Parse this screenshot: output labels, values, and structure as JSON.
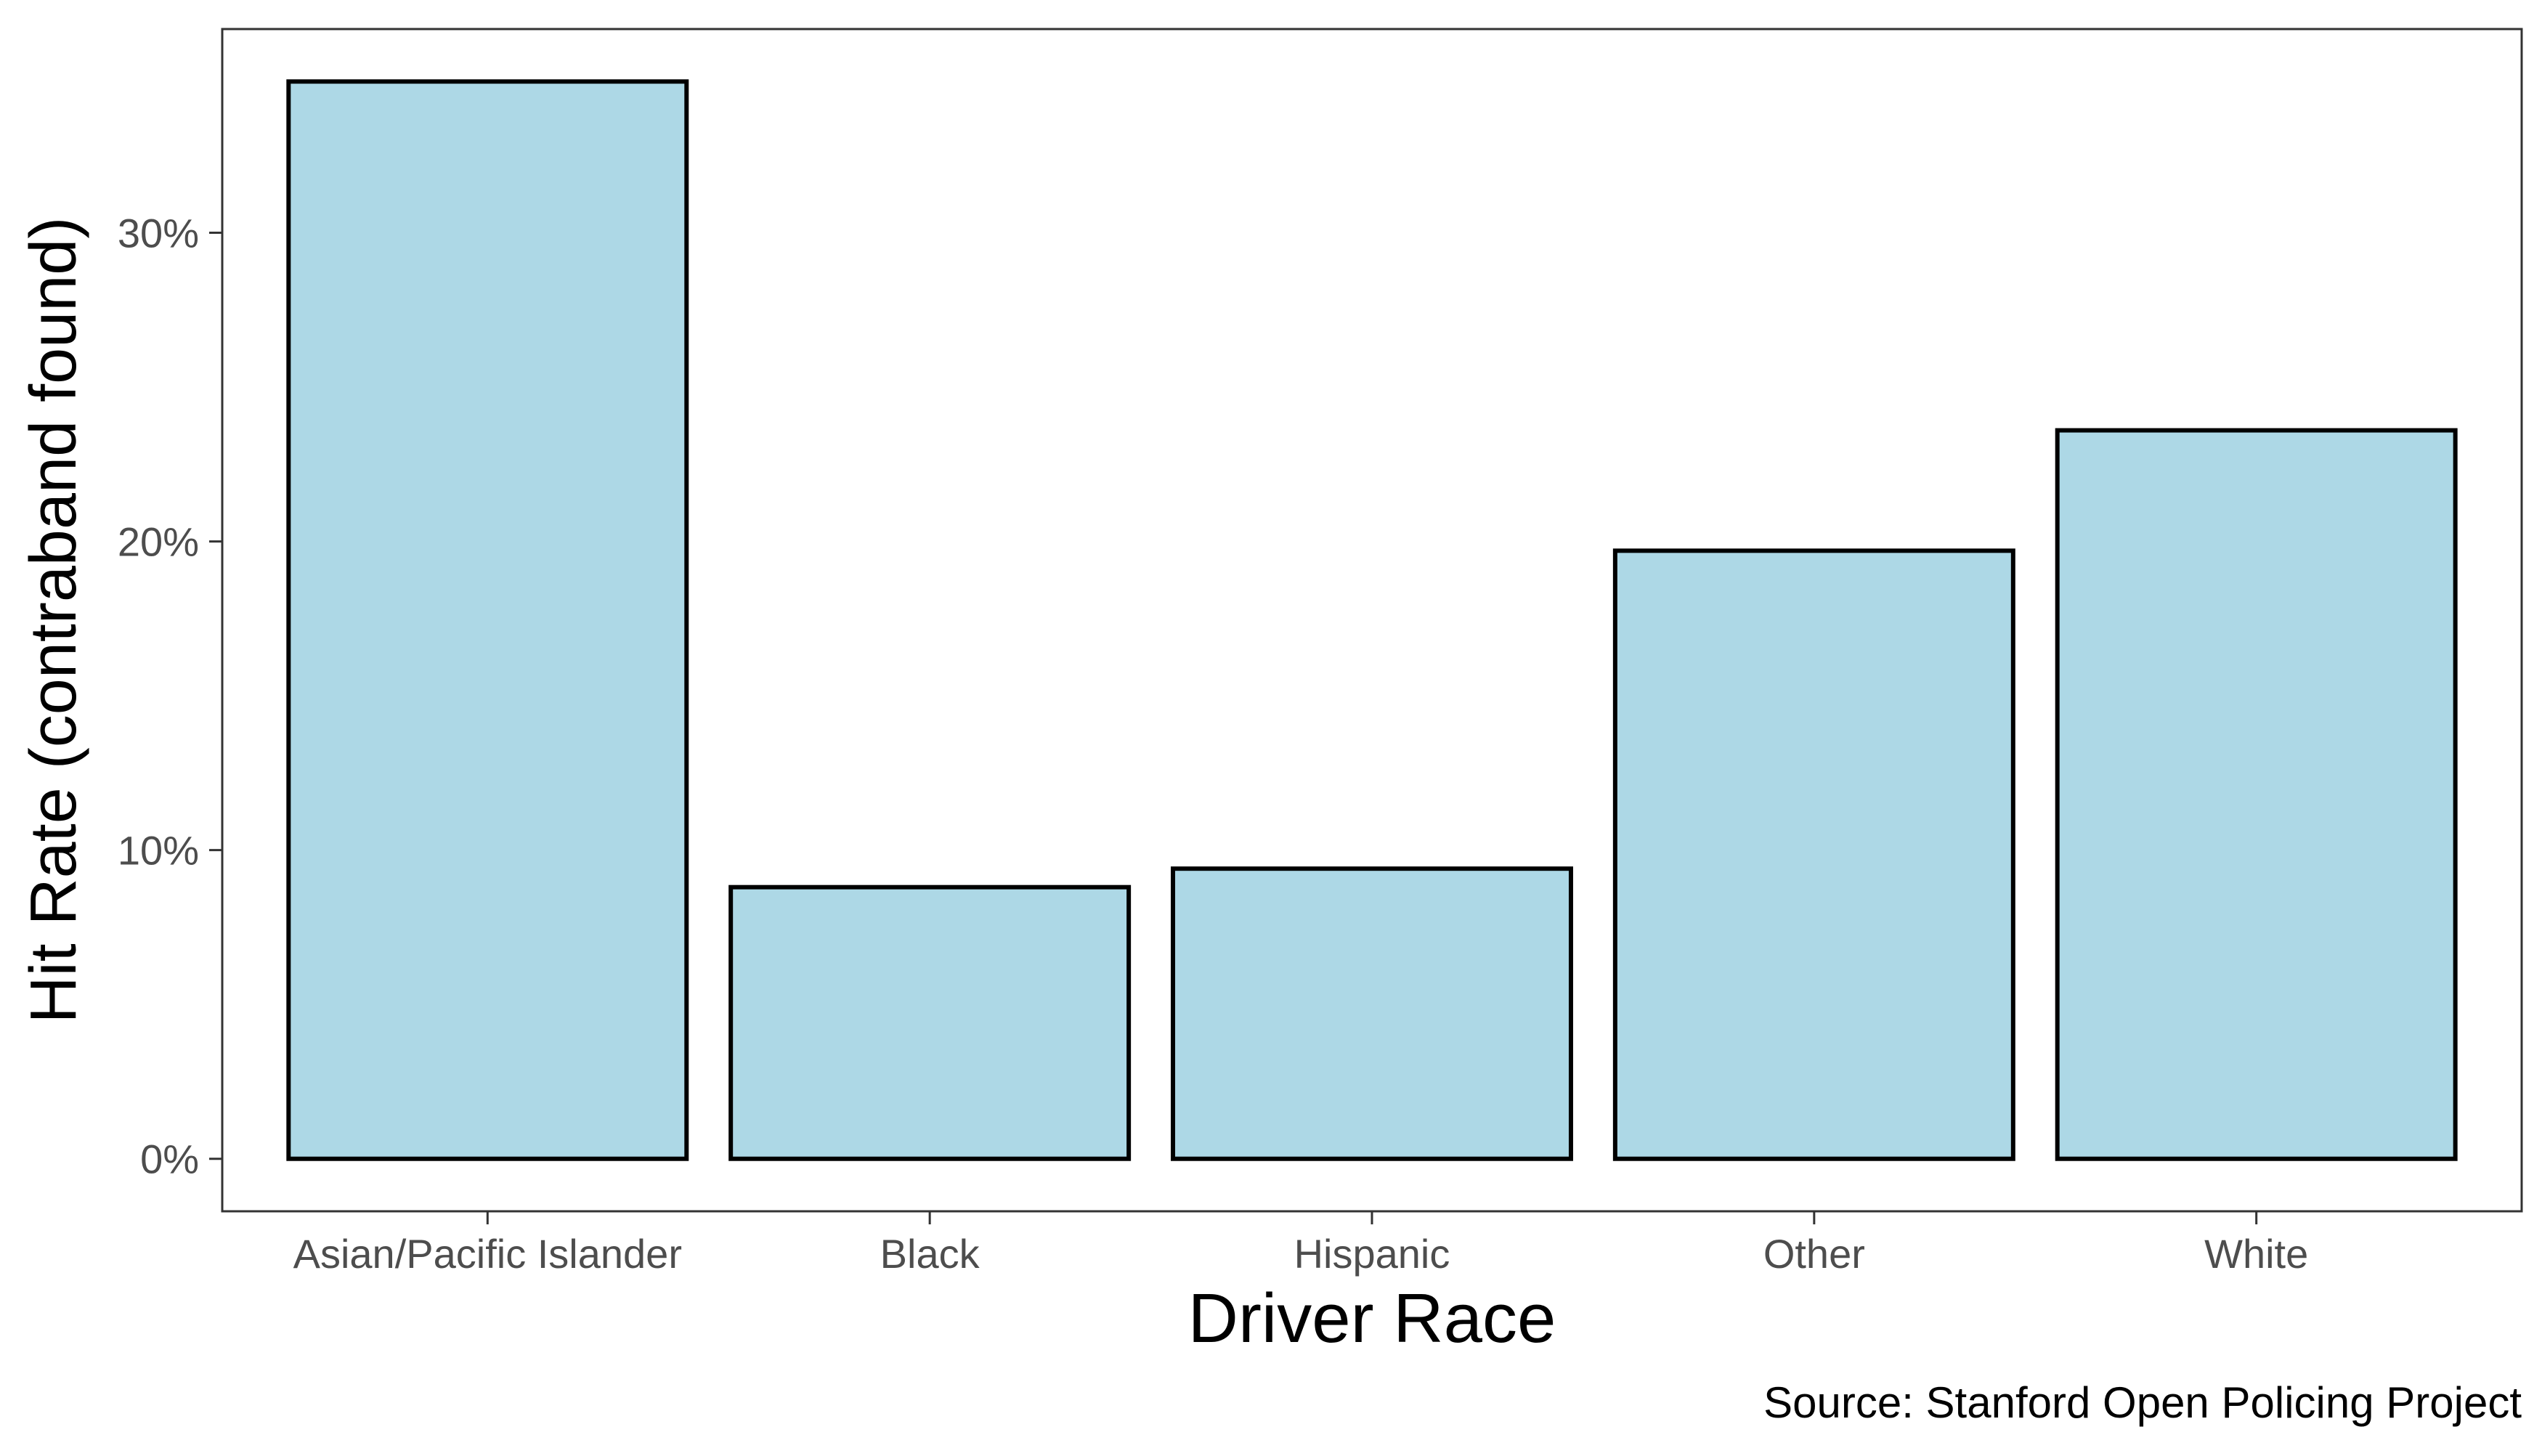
{
  "chart_data": {
    "type": "bar",
    "categories": [
      "Asian/Pacific Islander",
      "Black",
      "Hispanic",
      "Other",
      "White"
    ],
    "values": [
      34.9,
      8.8,
      9.4,
      19.7,
      23.6
    ],
    "value_format": "percent",
    "title": "",
    "xlabel": "Driver Race",
    "ylabel": "Hit Rate (contraband found)",
    "caption": "Source: Stanford Open Policing Project",
    "ylim": [
      -1.7,
      36.6
    ],
    "yticks": [
      0,
      10,
      20,
      30
    ],
    "ytick_labels": [
      "0%",
      "10%",
      "20%",
      "30%"
    ],
    "grid": false,
    "legend": "none",
    "colors": {
      "bar_fill": "#add8e6",
      "bar_stroke": "#000000",
      "panel_border": "#333333",
      "tick_text": "#4d4d4d",
      "axis_title": "#000000",
      "tick_mark": "#333333"
    }
  }
}
